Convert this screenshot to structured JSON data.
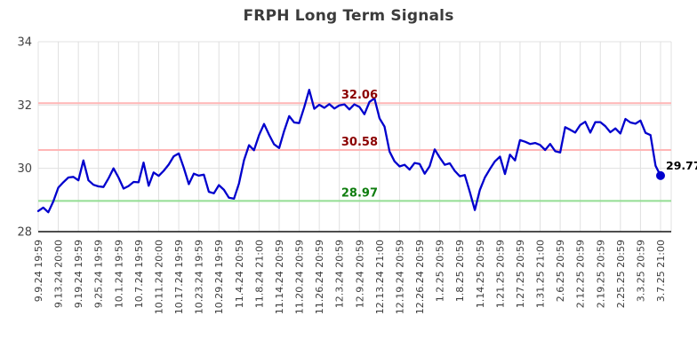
{
  "title": "FRPH Long Term Signals",
  "chart_data": {
    "type": "line",
    "title": "FRPH Long Term Signals",
    "ylim": [
      28,
      34
    ],
    "y_ticks": [
      28,
      30,
      32,
      34
    ],
    "grid": true,
    "background": "#ffffff",
    "x_tick_labels": [
      "9.9.24 19:59",
      "9.13.24 20:00",
      "9.19.24 19:59",
      "9.25.24 19:59",
      "10.1.24 19:59",
      "10.7.24 19:59",
      "10.11.24 20:00",
      "10.17.24 19:59",
      "10.23.24 19:59",
      "10.29.24 19:59",
      "11.4.24 20:59",
      "11.8.24 21:00",
      "11.14.24 20:59",
      "11.20.24 20:59",
      "11.26.24 20:59",
      "12.3.24 20:59",
      "12.9.24 20:59",
      "12.13.24 21:00",
      "12.19.24 20:59",
      "12.26.24 20:59",
      "1.2.25 20:59",
      "1.8.25 20:59",
      "1.14.25 20:59",
      "1.21.25 20:59",
      "1.27.25 20:59",
      "1.31.25 21:00",
      "2.6.25 20:59",
      "2.12.25 20:59",
      "2.19.25 20:59",
      "2.25.25 20:59",
      "3.3.25 20:59",
      "3.7.25 21:00"
    ],
    "series": [
      {
        "name": "FRPH",
        "color": "#0000cd",
        "values": [
          28.65,
          28.76,
          28.61,
          28.95,
          29.39,
          29.56,
          29.71,
          29.73,
          29.62,
          30.25,
          29.62,
          29.48,
          29.43,
          29.41,
          29.68,
          30.0,
          29.71,
          29.36,
          29.44,
          29.57,
          29.56,
          30.18,
          29.45,
          29.87,
          29.76,
          29.92,
          30.12,
          30.38,
          30.47,
          30.02,
          29.5,
          29.83,
          29.77,
          29.8,
          29.26,
          29.21,
          29.47,
          29.32,
          29.07,
          29.04,
          29.52,
          30.26,
          30.73,
          30.57,
          31.05,
          31.4,
          31.06,
          30.76,
          30.64,
          31.18,
          31.65,
          31.45,
          31.43,
          31.93,
          32.48,
          31.88,
          32.01,
          31.91,
          32.03,
          31.89,
          31.99,
          32.02,
          31.86,
          32.02,
          31.94,
          31.71,
          32.1,
          32.21,
          31.58,
          31.32,
          30.53,
          30.22,
          30.06,
          30.11,
          29.96,
          30.17,
          30.14,
          29.83,
          30.07,
          30.6,
          30.34,
          30.11,
          30.16,
          29.92,
          29.75,
          29.79,
          29.25,
          28.68,
          29.32,
          29.71,
          29.98,
          30.22,
          30.37,
          29.82,
          30.43,
          30.25,
          30.89,
          30.84,
          30.77,
          30.8,
          30.74,
          30.58,
          30.77,
          30.54,
          30.5,
          31.3,
          31.22,
          31.13,
          31.37,
          31.47,
          31.13,
          31.46,
          31.46,
          31.33,
          31.14,
          31.26,
          31.1,
          31.56,
          31.45,
          31.41,
          31.51,
          31.12,
          31.05,
          30.08,
          29.77
        ]
      }
    ],
    "signal_lines": [
      {
        "value": 32.06,
        "label": "32.06",
        "line_color": "#ffb6b6",
        "label_color": "#8b0000"
      },
      {
        "value": 30.58,
        "label": "30.58",
        "line_color": "#ffb6b6",
        "label_color": "#8b0000"
      },
      {
        "value": 28.97,
        "label": "28.97",
        "line_color": "#93dd93",
        "label_color": "#0f7d0f"
      }
    ],
    "last_point": {
      "label": "29.77",
      "value": 29.77,
      "dot_color": "#0000cd",
      "label_color": "#000000"
    },
    "colors": {
      "grid": "#e0e0e0",
      "axis": "#141414",
      "x_tick_text": "#3d3d3d",
      "y_tick_text": "#444444"
    }
  }
}
